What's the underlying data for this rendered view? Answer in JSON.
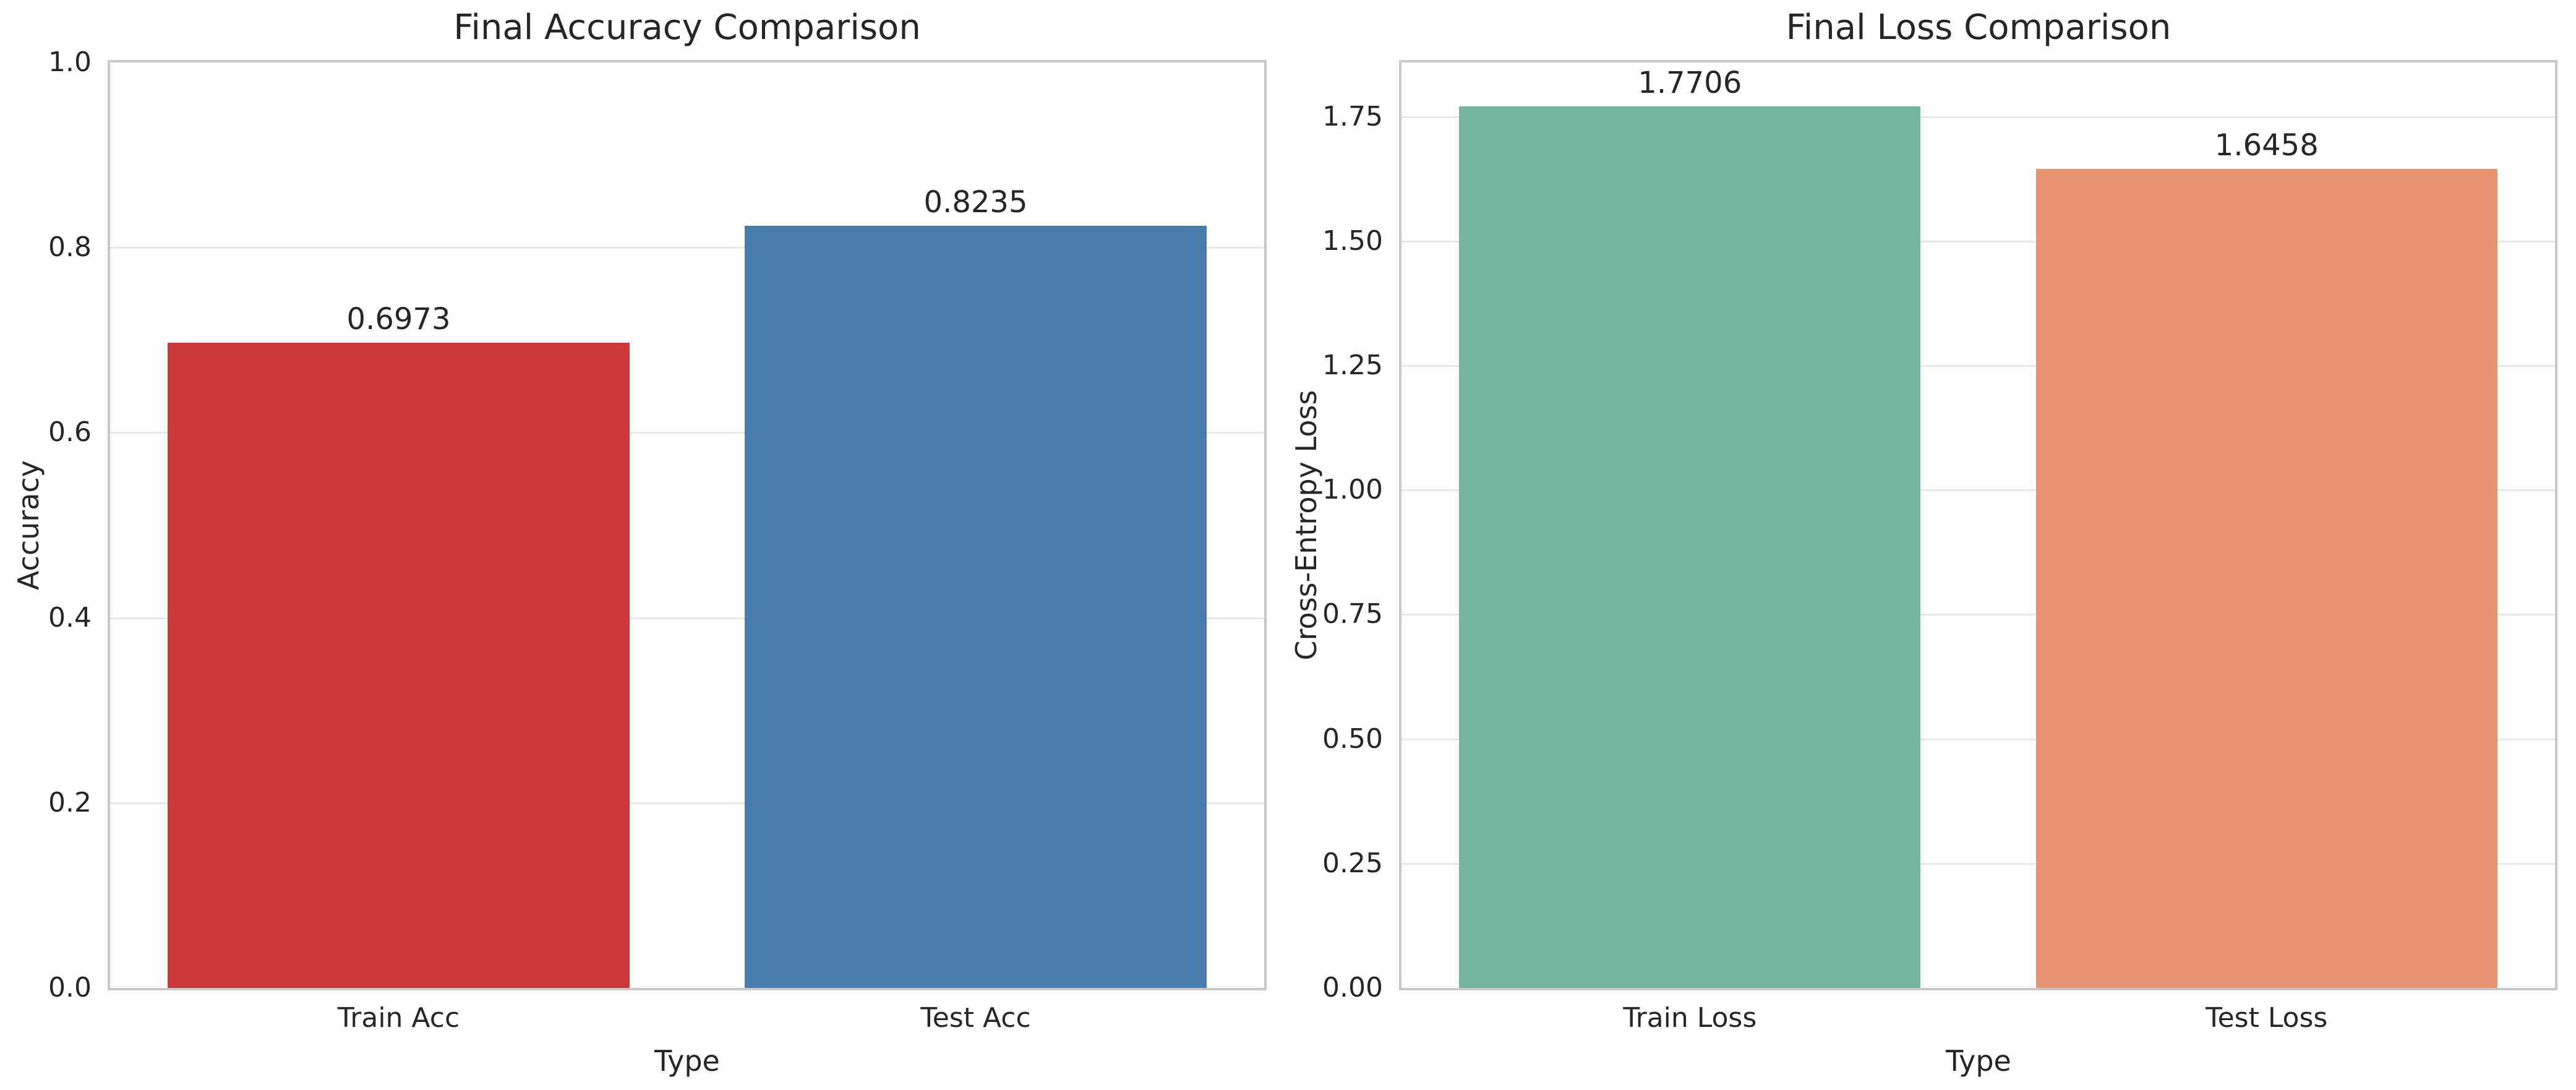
{
  "figure": {
    "background_color": "#ffffff",
    "text_color": "#262626",
    "grid_color": "#e8e8e8",
    "spine_color": "#c8c8cb"
  },
  "chart_data": [
    {
      "type": "bar",
      "title": "Final Accuracy Comparison",
      "xlabel": "Type",
      "ylabel": "Accuracy",
      "categories": [
        "Train Acc",
        "Test Acc"
      ],
      "values": [
        0.6973,
        0.8235
      ],
      "value_labels": [
        "0.6973",
        "0.8235"
      ],
      "bar_colors": [
        "#cb3839",
        "#487cad"
      ],
      "ylim": [
        0,
        1.0
      ],
      "grid": "horizontal",
      "legend": "none",
      "yticks": [
        {
          "value": 0.0,
          "label": "0.0"
        },
        {
          "value": 0.2,
          "label": "0.2"
        },
        {
          "value": 0.4,
          "label": "0.4"
        },
        {
          "value": 0.6,
          "label": "0.6"
        },
        {
          "value": 0.8,
          "label": "0.8"
        },
        {
          "value": 1.0,
          "label": "1.0"
        }
      ]
    },
    {
      "type": "bar",
      "title": "Final Loss Comparison",
      "xlabel": "Type",
      "ylabel": "Cross-Entropy Loss",
      "categories": [
        "Train Loss",
        "Test Loss"
      ],
      "values": [
        1.7706,
        1.6458
      ],
      "value_labels": [
        "1.7706",
        "1.6458"
      ],
      "bar_colors": [
        "#71b5a0",
        "#e99471"
      ],
      "ylim": [
        0,
        1.8591
      ],
      "grid": "horizontal",
      "legend": "none",
      "yticks": [
        {
          "value": 0.0,
          "label": "0.00"
        },
        {
          "value": 0.25,
          "label": "0.25"
        },
        {
          "value": 0.5,
          "label": "0.50"
        },
        {
          "value": 0.75,
          "label": "0.75"
        },
        {
          "value": 1.0,
          "label": "1.00"
        },
        {
          "value": 1.25,
          "label": "1.25"
        },
        {
          "value": 1.5,
          "label": "1.50"
        },
        {
          "value": 1.75,
          "label": "1.75"
        }
      ]
    }
  ]
}
